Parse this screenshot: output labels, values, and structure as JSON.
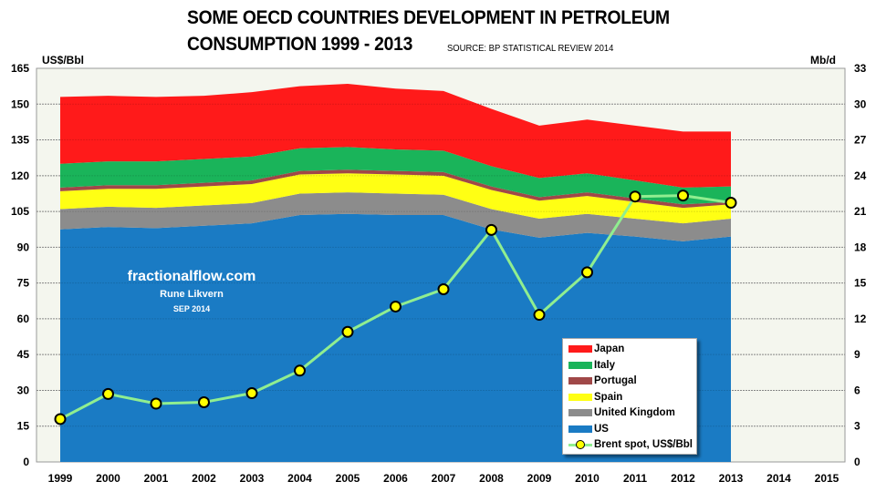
{
  "title_line1": "SOME OECD COUNTRIES DEVELOPMENT IN PETROLEUM",
  "title_line2": "CONSUMPTION 1999 - 2013",
  "source": "SOURCE: BP STATISTICAL REVIEW 2014",
  "watermark": {
    "site": "fractionalflow.com",
    "author": "Rune Likvern",
    "date": "SEP 2014"
  },
  "chart_data": {
    "type": "area",
    "stacked": true,
    "title": "SOME OECD COUNTRIES DEVELOPMENT IN PETROLEUM CONSUMPTION 1999 - 2013",
    "subtitle": "SOURCE: BP STATISTICAL REVIEW 2014",
    "x": [
      1999,
      2000,
      2001,
      2002,
      2003,
      2004,
      2005,
      2006,
      2007,
      2008,
      2009,
      2010,
      2011,
      2012,
      2013
    ],
    "x_ticks": [
      "1999",
      "2000",
      "2001",
      "2002",
      "2003",
      "2004",
      "2005",
      "2006",
      "2007",
      "2008",
      "2009",
      "2010",
      "2011",
      "2012",
      "2013",
      "2014",
      "2015"
    ],
    "ylabel_left": "US$/Bbl",
    "ylabel_right": "Mb/d",
    "ylim_left": [
      0,
      165
    ],
    "yticks_left": [
      0,
      15,
      30,
      45,
      60,
      75,
      90,
      105,
      120,
      135,
      150,
      165
    ],
    "ylim_right": [
      0,
      33
    ],
    "yticks_right": [
      0,
      3,
      6,
      9,
      12,
      15,
      18,
      21,
      24,
      27,
      30,
      33
    ],
    "grid": true,
    "legend_position": "bottom-right",
    "series": [
      {
        "name": "US",
        "axis": "right",
        "color": "#1a7bc4",
        "values": [
          19.5,
          19.7,
          19.6,
          19.8,
          20.0,
          20.7,
          20.8,
          20.7,
          20.7,
          19.5,
          18.8,
          19.2,
          18.9,
          18.5,
          18.9
        ]
      },
      {
        "name": "United Kingdom",
        "axis": "right",
        "color": "#8c8c8c",
        "values": [
          1.7,
          1.7,
          1.7,
          1.7,
          1.7,
          1.8,
          1.8,
          1.8,
          1.7,
          1.7,
          1.6,
          1.6,
          1.5,
          1.5,
          1.5
        ]
      },
      {
        "name": "Spain",
        "axis": "right",
        "color": "#ffff14",
        "values": [
          1.5,
          1.5,
          1.6,
          1.6,
          1.6,
          1.6,
          1.6,
          1.6,
          1.6,
          1.6,
          1.5,
          1.5,
          1.4,
          1.3,
          1.2
        ]
      },
      {
        "name": "Portugal",
        "axis": "right",
        "color": "#a04848",
        "values": [
          0.3,
          0.3,
          0.3,
          0.3,
          0.3,
          0.3,
          0.3,
          0.3,
          0.3,
          0.3,
          0.3,
          0.3,
          0.3,
          0.3,
          0.2
        ]
      },
      {
        "name": "Italy",
        "axis": "right",
        "color": "#1ab45a",
        "values": [
          2.0,
          2.0,
          2.0,
          2.0,
          2.0,
          1.9,
          1.9,
          1.8,
          1.8,
          1.7,
          1.6,
          1.6,
          1.5,
          1.4,
          1.3
        ]
      },
      {
        "name": "Japan",
        "axis": "right",
        "color": "#ff1a1a",
        "values": [
          5.6,
          5.5,
          5.4,
          5.3,
          5.4,
          5.2,
          5.3,
          5.1,
          5.0,
          4.8,
          4.4,
          4.5,
          4.6,
          4.7,
          4.6
        ]
      },
      {
        "name": "Brent spot, US$/Bbl",
        "axis": "left",
        "type": "line",
        "color": "#90ee90",
        "marker_color": "#ffff00",
        "values": [
          17.97,
          28.5,
          24.44,
          25.02,
          28.83,
          38.27,
          54.52,
          65.14,
          72.39,
          97.26,
          61.67,
          79.5,
          111.26,
          111.67,
          108.66
        ]
      }
    ],
    "legend": [
      "Japan",
      "Italy",
      "Portugal",
      "Spain",
      "United Kingdom",
      "US",
      "Brent spot, US$/Bbl"
    ]
  }
}
